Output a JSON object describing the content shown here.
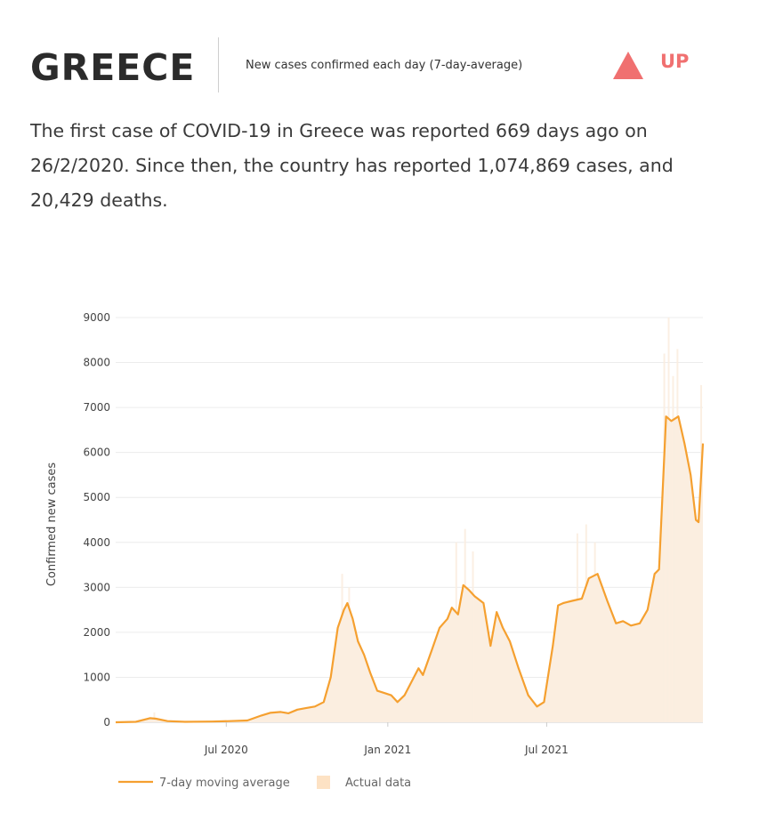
{
  "header": {
    "country": "GREECE",
    "subtitle": "New cases confirmed each day (7-day-average)",
    "trend_label": "UP",
    "trend_icon": "up-triangle-icon",
    "trend_color": "#f07070"
  },
  "summary": "The first case of COVID-19 in Greece was reported 669 days ago on 26/2/2020. Since then, the country has reported 1,074,869 cases, and 20,429 deaths.",
  "colors": {
    "line": "#f5a030",
    "area": "#fbeee0",
    "grid": "#ececec"
  },
  "chart_data": {
    "type": "line",
    "ylabel": "Confirmed new cases",
    "ylim": [
      0,
      9000
    ],
    "yticks": [
      "0",
      "1000",
      "2000",
      "3000",
      "4000",
      "5000",
      "6000",
      "7000",
      "8000",
      "9000"
    ],
    "x_range": [
      "2020-02-26",
      "2021-12-26"
    ],
    "xticks": [
      {
        "date": "2020-07-01",
        "label": "Jul 2020"
      },
      {
        "date": "2021-01-01",
        "label": "Jan 2021"
      },
      {
        "date": "2021-07-01",
        "label": "Jul 2021"
      }
    ],
    "legend": {
      "position": "bottom-left"
    },
    "series": [
      {
        "name": "7-day moving average",
        "kind": "line",
        "points": [
          [
            "2020-02-26",
            0
          ],
          [
            "2020-03-20",
            10
          ],
          [
            "2020-04-05",
            90
          ],
          [
            "2020-04-12",
            80
          ],
          [
            "2020-04-25",
            25
          ],
          [
            "2020-05-15",
            10
          ],
          [
            "2020-06-15",
            15
          ],
          [
            "2020-07-05",
            25
          ],
          [
            "2020-07-25",
            40
          ],
          [
            "2020-08-10",
            150
          ],
          [
            "2020-08-20",
            210
          ],
          [
            "2020-09-01",
            230
          ],
          [
            "2020-09-10",
            200
          ],
          [
            "2020-09-20",
            280
          ],
          [
            "2020-10-01",
            320
          ],
          [
            "2020-10-10",
            350
          ],
          [
            "2020-10-20",
            450
          ],
          [
            "2020-10-28",
            1000
          ],
          [
            "2020-11-05",
            2100
          ],
          [
            "2020-11-12",
            2500
          ],
          [
            "2020-11-16",
            2650
          ],
          [
            "2020-11-22",
            2300
          ],
          [
            "2020-11-28",
            1800
          ],
          [
            "2020-12-05",
            1500
          ],
          [
            "2020-12-12",
            1100
          ],
          [
            "2020-12-20",
            700
          ],
          [
            "2020-12-28",
            650
          ],
          [
            "2021-01-05",
            600
          ],
          [
            "2021-01-12",
            450
          ],
          [
            "2021-01-20",
            600
          ],
          [
            "2021-01-28",
            900
          ],
          [
            "2021-02-05",
            1200
          ],
          [
            "2021-02-10",
            1050
          ],
          [
            "2021-02-20",
            1600
          ],
          [
            "2021-03-01",
            2100
          ],
          [
            "2021-03-10",
            2300
          ],
          [
            "2021-03-15",
            2550
          ],
          [
            "2021-03-22",
            2400
          ],
          [
            "2021-03-28",
            3050
          ],
          [
            "2021-04-03",
            2950
          ],
          [
            "2021-04-10",
            2800
          ],
          [
            "2021-04-20",
            2650
          ],
          [
            "2021-04-28",
            1700
          ],
          [
            "2021-05-05",
            2450
          ],
          [
            "2021-05-12",
            2100
          ],
          [
            "2021-05-20",
            1800
          ],
          [
            "2021-05-30",
            1200
          ],
          [
            "2021-06-10",
            600
          ],
          [
            "2021-06-20",
            350
          ],
          [
            "2021-06-28",
            450
          ],
          [
            "2021-07-08",
            1700
          ],
          [
            "2021-07-14",
            2600
          ],
          [
            "2021-07-20",
            2650
          ],
          [
            "2021-07-30",
            2700
          ],
          [
            "2021-08-10",
            2750
          ],
          [
            "2021-08-18",
            3200
          ],
          [
            "2021-08-28",
            3300
          ],
          [
            "2021-09-08",
            2700
          ],
          [
            "2021-09-18",
            2200
          ],
          [
            "2021-09-26",
            2250
          ],
          [
            "2021-10-05",
            2150
          ],
          [
            "2021-10-15",
            2200
          ],
          [
            "2021-10-24",
            2500
          ],
          [
            "2021-11-01",
            3300
          ],
          [
            "2021-11-06",
            3400
          ],
          [
            "2021-11-14",
            6800
          ],
          [
            "2021-11-20",
            6700
          ],
          [
            "2021-11-28",
            6800
          ],
          [
            "2021-12-05",
            6200
          ],
          [
            "2021-12-12",
            5500
          ],
          [
            "2021-12-18",
            4500
          ],
          [
            "2021-12-21",
            4450
          ],
          [
            "2021-12-26",
            6200
          ]
        ]
      },
      {
        "name": "Actual data",
        "kind": "area",
        "spikes": [
          [
            "2020-04-10",
            220
          ],
          [
            "2020-11-10",
            3300
          ],
          [
            "2020-11-18",
            3000
          ],
          [
            "2021-03-20",
            4000
          ],
          [
            "2021-03-30",
            4300
          ],
          [
            "2021-04-08",
            3800
          ],
          [
            "2021-08-05",
            4200
          ],
          [
            "2021-08-15",
            4400
          ],
          [
            "2021-08-25",
            4000
          ],
          [
            "2021-11-12",
            8200
          ],
          [
            "2021-11-17",
            9000
          ],
          [
            "2021-11-22",
            7700
          ],
          [
            "2021-11-27",
            8300
          ],
          [
            "2021-12-24",
            7500
          ]
        ]
      }
    ]
  }
}
